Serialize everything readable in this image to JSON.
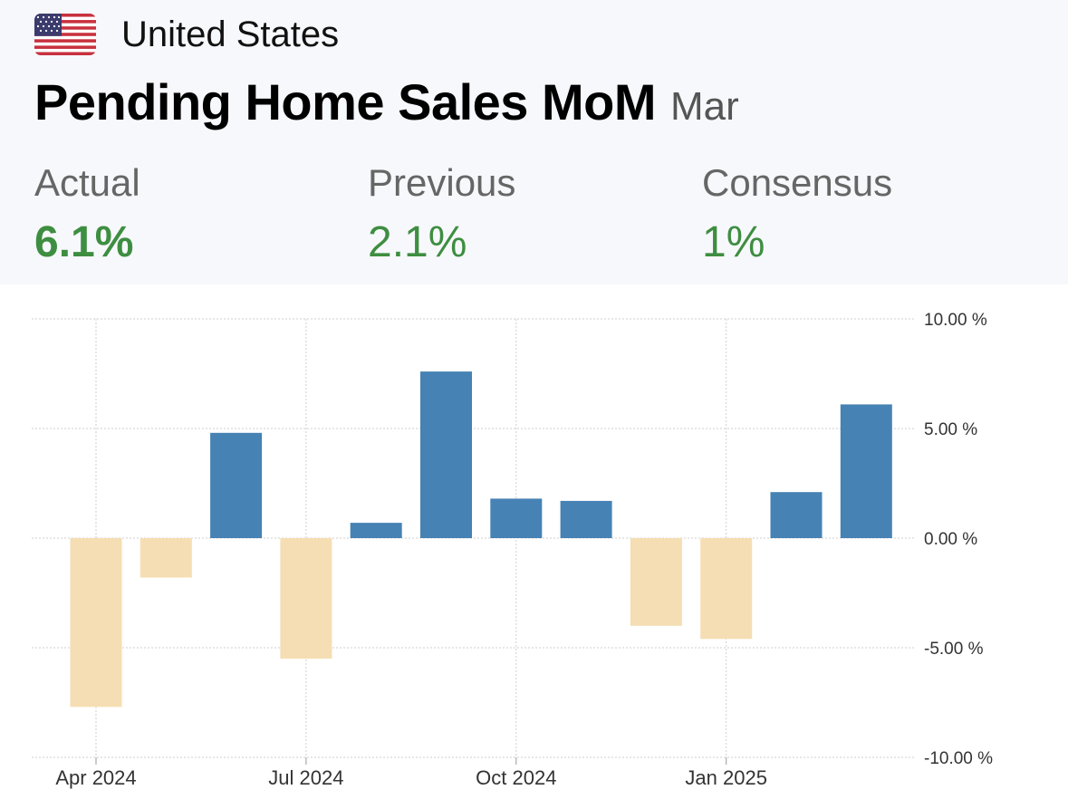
{
  "header": {
    "country": "United States",
    "flag_icon": "us-flag-icon",
    "title": "Pending Home Sales MoM",
    "period": "Mar"
  },
  "stats": {
    "actual": {
      "label": "Actual",
      "value": "6.1%"
    },
    "previous": {
      "label": "Previous",
      "value": "2.1%"
    },
    "consensus": {
      "label": "Consensus",
      "value": "1%"
    }
  },
  "colors": {
    "positive_bar": "#4682b4",
    "negative_bar": "#f5deb3",
    "stat_value": "#3e8e41",
    "grid": "#cfcfcf"
  },
  "chart_data": {
    "type": "bar",
    "categories": [
      "2024-04",
      "2024-05",
      "2024-06",
      "2024-07",
      "2024-08",
      "2024-09",
      "2024-10",
      "2024-11",
      "2024-12",
      "2025-01",
      "2025-02",
      "2025-03"
    ],
    "values": [
      -7.7,
      -1.8,
      4.8,
      -5.5,
      0.7,
      7.6,
      1.8,
      1.7,
      -4.0,
      -4.6,
      2.1,
      6.1
    ],
    "ylim": [
      -10,
      10
    ],
    "y_ticks": [
      10,
      5,
      0,
      -5,
      -10
    ],
    "y_tick_labels": [
      "10.00 %",
      "5.00 %",
      "0.00 %",
      "-5.00 %",
      "-10.00 %"
    ],
    "x_tick_labels": [
      "Apr 2024",
      "Jul 2024",
      "Oct 2024",
      "Jan 2025"
    ],
    "x_tick_categories": [
      "2024-04",
      "2024-07",
      "2024-10",
      "2025-01"
    ],
    "grid": true,
    "title": "",
    "xlabel": "",
    "ylabel": ""
  }
}
